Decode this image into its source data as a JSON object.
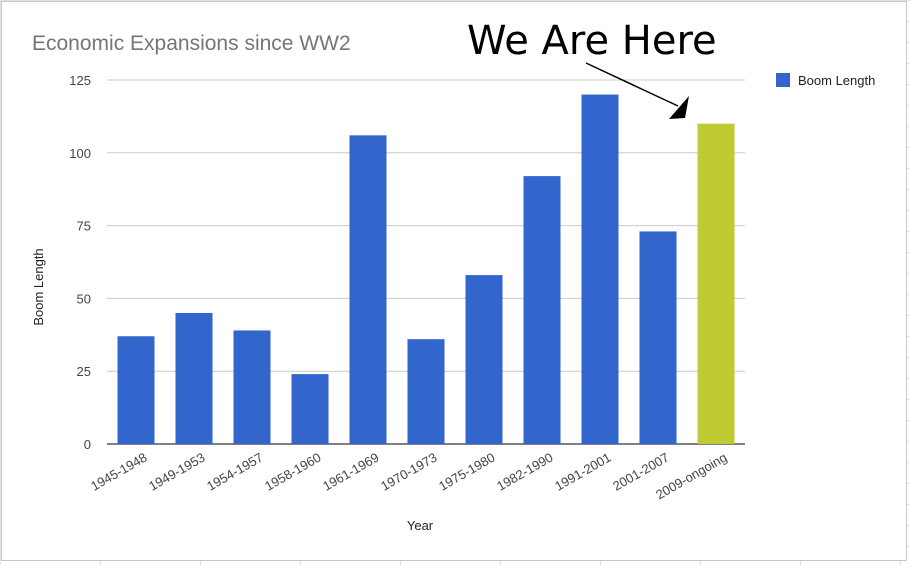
{
  "chart_data": {
    "type": "bar",
    "title": "Economic Expansions since WW2",
    "xlabel": "Year",
    "ylabel": "Boom Length",
    "ylim": [
      0,
      125
    ],
    "yticks": [
      0,
      25,
      50,
      75,
      100,
      125
    ],
    "grid": true,
    "legend": {
      "position": "top-right",
      "entries": [
        "Boom Length"
      ]
    },
    "categories": [
      "1945-1948",
      "1949-1953",
      "1954-1957",
      "1958-1960",
      "1961-1969",
      "1970-1973",
      "1975-1980",
      "1982-1990",
      "1991-2001",
      "2001-2007",
      "2009-ongoing"
    ],
    "series": [
      {
        "name": "Boom Length",
        "values": [
          37,
          45,
          39,
          24,
          106,
          36,
          58,
          92,
          120,
          73,
          110
        ],
        "color": "#3366cc"
      }
    ],
    "highlight": {
      "category": "2009-ongoing",
      "color": "#c0ca33"
    },
    "annotation": {
      "text": "We Are Here",
      "points_to": "2009-ongoing"
    }
  }
}
